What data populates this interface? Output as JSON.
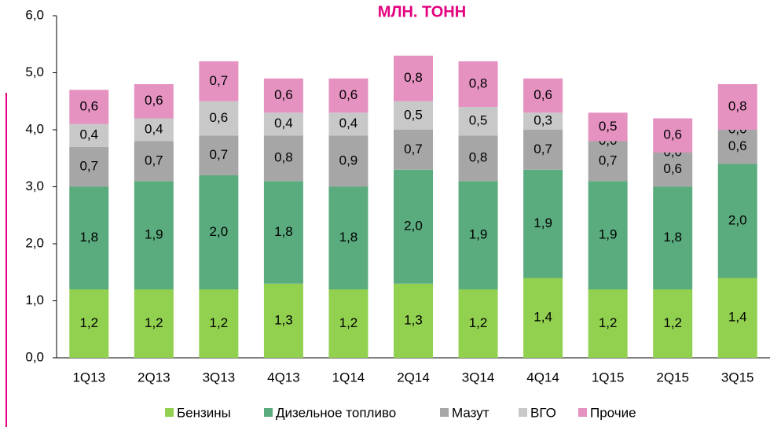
{
  "chart_data": {
    "type": "stacked_bar",
    "title": "МЛН. ТОНН",
    "categories": [
      "1Q13",
      "2Q13",
      "3Q13",
      "4Q13",
      "1Q14",
      "2Q14",
      "3Q14",
      "4Q14",
      "1Q15",
      "2Q15",
      "3Q15"
    ],
    "series": [
      {
        "name": "Бензины",
        "color": "#92d050",
        "values": [
          1.2,
          1.2,
          1.2,
          1.3,
          1.2,
          1.3,
          1.2,
          1.4,
          1.2,
          1.2,
          1.4
        ],
        "value_labels": [
          "1,2",
          "1,2",
          "1,2",
          "1,3",
          "1,2",
          "1,3",
          "1,2",
          "1,4",
          "1,2",
          "1,2",
          "1,4"
        ]
      },
      {
        "name": "Дизельное топливо",
        "color": "#5aab7e",
        "values": [
          1.8,
          1.9,
          2.0,
          1.8,
          1.8,
          2.0,
          1.9,
          1.9,
          1.9,
          1.8,
          2.0
        ],
        "value_labels": [
          "1,8",
          "1,9",
          "2,0",
          "1,8",
          "1,8",
          "2,0",
          "1,9",
          "1,9",
          "1,9",
          "1,8",
          "2,0"
        ]
      },
      {
        "name": "Мазут",
        "color": "#a6a6a6",
        "values": [
          0.7,
          0.7,
          0.7,
          0.8,
          0.9,
          0.7,
          0.8,
          0.7,
          0.7,
          0.6,
          0.6
        ],
        "value_labels": [
          "0,7",
          "0,7",
          "0,7",
          "0,8",
          "0,9",
          "0,7",
          "0,8",
          "0,7",
          "0,7",
          "0,6",
          "0,6"
        ]
      },
      {
        "name": "ВГО",
        "color": "#c8c8c8",
        "values": [
          0.4,
          0.4,
          0.6,
          0.4,
          0.4,
          0.5,
          0.5,
          0.3,
          0.0,
          0.0,
          0.0
        ],
        "value_labels": [
          "0,4",
          "0,4",
          "0,6",
          "0,4",
          "0,4",
          "0,5",
          "0,5",
          "0,3",
          "0,0",
          "0,0",
          "0,0"
        ]
      },
      {
        "name": "Прочие",
        "color": "#e592c1",
        "values": [
          0.6,
          0.6,
          0.7,
          0.6,
          0.6,
          0.8,
          0.8,
          0.6,
          0.5,
          0.6,
          0.8
        ],
        "value_labels": [
          "0,6",
          "0,6",
          "0,7",
          "0,6",
          "0,6",
          "0,8",
          "0,8",
          "0,6",
          "0,5",
          "0,6",
          "0,8"
        ]
      }
    ],
    "ylim": [
      0,
      6
    ],
    "yticks": [
      {
        "value": 0,
        "label": "0,0"
      },
      {
        "value": 1,
        "label": "1,0"
      },
      {
        "value": 2,
        "label": "2,0"
      },
      {
        "value": 3,
        "label": "3,0"
      },
      {
        "value": 4,
        "label": "4,0"
      },
      {
        "value": 5,
        "label": "5,0"
      },
      {
        "value": 6,
        "label": "6,0"
      }
    ],
    "legend": "bottom"
  }
}
